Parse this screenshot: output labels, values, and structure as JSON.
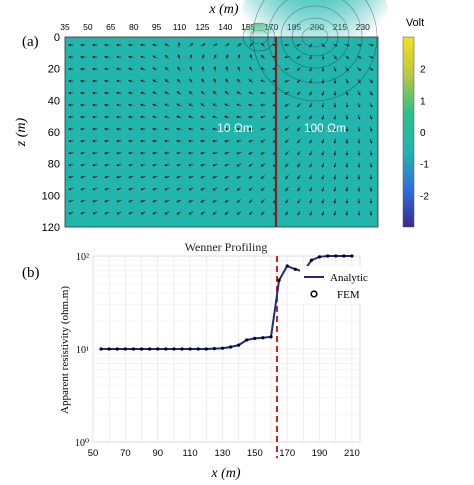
{
  "panel_a": {
    "label": "(a)",
    "x_axis_label": "x (m)",
    "y_axis_label": "z (m)",
    "x_ticks": [
      "35",
      "50",
      "65",
      "80",
      "95",
      "110",
      "125",
      "140",
      "155",
      "170",
      "185",
      "200",
      "215",
      "230"
    ],
    "y_ticks": [
      "0",
      "20",
      "40",
      "60",
      "80",
      "100",
      "120"
    ],
    "region_left_label": "10 Ωm",
    "region_right_label": "100 Ωm",
    "colorbar_title": "Volt",
    "colorbar_ticks": [
      "2",
      "1",
      "0",
      "-1",
      "-2"
    ],
    "background_color": "#22b5ae",
    "boundary_color": "#8b1a1a"
  },
  "panel_b": {
    "label": "(b)",
    "title": "Wenner Profiling",
    "x_axis_label": "x (m)",
    "y_axis_label": "Apparent resistivity (ohm.m)",
    "x_ticks": [
      "50",
      "70",
      "90",
      "110",
      "130",
      "150",
      "170",
      "190",
      "210"
    ],
    "y_ticks": [
      "10⁰",
      "10¹",
      "10²"
    ],
    "legend_analytic": "Analytic",
    "legend_fem": "FEM",
    "line_color": "#1a2a8c",
    "dashed_color": "#d62020"
  },
  "chart_data": [
    {
      "type": "heatmap",
      "title": "",
      "xlabel": "x (m)",
      "ylabel": "z (m)",
      "xlim": [
        35,
        240
      ],
      "ylim": [
        120,
        0
      ],
      "boundary_x": 165,
      "colorbar": {
        "label": "Volt",
        "range": [
          -3,
          3
        ]
      },
      "annotations": [
        "10 Ωm",
        "100 Ωm"
      ]
    },
    {
      "type": "line",
      "title": "Wenner Profiling",
      "xlabel": "x (m)",
      "ylabel": "Apparent resistivity (ohm.m)",
      "yscale": "log",
      "xlim": [
        50,
        215
      ],
      "ylim": [
        1,
        100
      ],
      "boundary_x": 165,
      "series": [
        {
          "name": "Analytic",
          "x": [
            55,
            60,
            65,
            70,
            75,
            80,
            85,
            90,
            95,
            100,
            105,
            110,
            115,
            120,
            125,
            130,
            135,
            140,
            145,
            150,
            155,
            160,
            165,
            170,
            175,
            180,
            185,
            190,
            195,
            200,
            205,
            210
          ],
          "values": [
            10,
            10,
            10,
            10,
            10,
            10,
            10,
            10,
            10,
            10,
            10,
            10,
            10,
            10,
            10.1,
            10.2,
            10.5,
            11,
            12.5,
            13,
            13.2,
            13.5,
            55,
            78,
            72,
            68,
            90,
            98,
            100,
            100,
            100,
            100
          ]
        },
        {
          "name": "FEM",
          "x": [
            55,
            60,
            65,
            70,
            75,
            80,
            85,
            90,
            95,
            100,
            105,
            110,
            115,
            120,
            125,
            130,
            135,
            140,
            145,
            150,
            155,
            160,
            165,
            170,
            175,
            180,
            185,
            190,
            195,
            200,
            205,
            210
          ],
          "values": [
            10,
            10,
            10,
            10,
            10,
            10,
            10,
            10,
            10,
            10,
            10,
            10,
            10,
            10,
            10.1,
            10.2,
            10.5,
            11,
            12.5,
            13,
            13.2,
            13.5,
            55,
            78,
            72,
            68,
            90,
            98,
            100,
            100,
            100,
            100
          ]
        }
      ]
    }
  ]
}
